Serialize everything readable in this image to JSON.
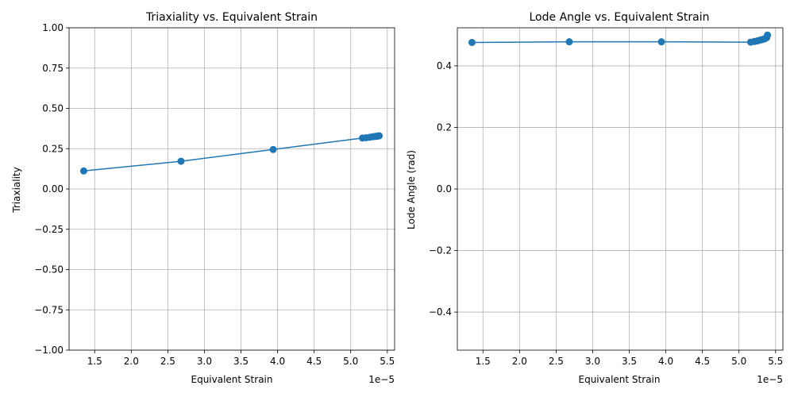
{
  "chart_data": [
    {
      "type": "line",
      "title": "Triaxiality vs. Equivalent Strain",
      "xlabel": "Equivalent Strain",
      "ylabel": "Triaxiality",
      "x_offset_text": "1e−5",
      "x_scale_exponent": -5,
      "xlim": [
        1.15,
        5.6
      ],
      "ylim": [
        -1.0,
        1.0
      ],
      "xticks": [
        1.5,
        2.0,
        2.5,
        3.0,
        3.5,
        4.0,
        4.5,
        5.0,
        5.5
      ],
      "xtick_labels": [
        "1.5",
        "2.0",
        "2.5",
        "3.0",
        "3.5",
        "4.0",
        "4.5",
        "5.0",
        "5.5"
      ],
      "yticks": [
        -1.0,
        -0.75,
        -0.5,
        -0.25,
        0.0,
        0.25,
        0.5,
        0.75,
        1.0
      ],
      "ytick_labels": [
        "−1.00",
        "−0.75",
        "−0.50",
        "−0.25",
        "0.00",
        "0.25",
        "0.50",
        "0.75",
        "1.00"
      ],
      "grid": true,
      "series": [
        {
          "color": "#1f77b4",
          "x": [
            1.35,
            2.68,
            3.94,
            5.16,
            5.21,
            5.26,
            5.3,
            5.33,
            5.35,
            5.37,
            5.38,
            5.39
          ],
          "y": [
            0.112,
            0.172,
            0.245,
            0.316,
            0.318,
            0.321,
            0.324,
            0.326,
            0.327,
            0.328,
            0.329,
            0.33
          ]
        }
      ]
    },
    {
      "type": "line",
      "title": "Lode Angle vs. Equivalent Strain",
      "xlabel": "Equivalent Strain",
      "ylabel": "Lode Angle (rad)",
      "x_offset_text": "1e−5",
      "x_scale_exponent": -5,
      "xlim": [
        1.15,
        5.6
      ],
      "ylim": [
        -0.5236,
        0.5236
      ],
      "xticks": [
        1.5,
        2.0,
        2.5,
        3.0,
        3.5,
        4.0,
        4.5,
        5.0,
        5.5
      ],
      "xtick_labels": [
        "1.5",
        "2.0",
        "2.5",
        "3.0",
        "3.5",
        "4.0",
        "4.5",
        "5.0",
        "5.5"
      ],
      "yticks": [
        -0.4,
        -0.2,
        0.0,
        0.2,
        0.4
      ],
      "ytick_labels": [
        "−0.4",
        "−0.2",
        "0.0",
        "0.2",
        "0.4"
      ],
      "grid": true,
      "series": [
        {
          "color": "#1f77b4",
          "x": [
            1.35,
            2.68,
            3.94,
            5.16,
            5.21,
            5.25,
            5.28,
            5.31,
            5.34,
            5.36,
            5.38,
            5.39
          ],
          "y": [
            0.476,
            0.478,
            0.478,
            0.477,
            0.479,
            0.481,
            0.483,
            0.485,
            0.487,
            0.489,
            0.492,
            0.5
          ]
        }
      ]
    }
  ]
}
